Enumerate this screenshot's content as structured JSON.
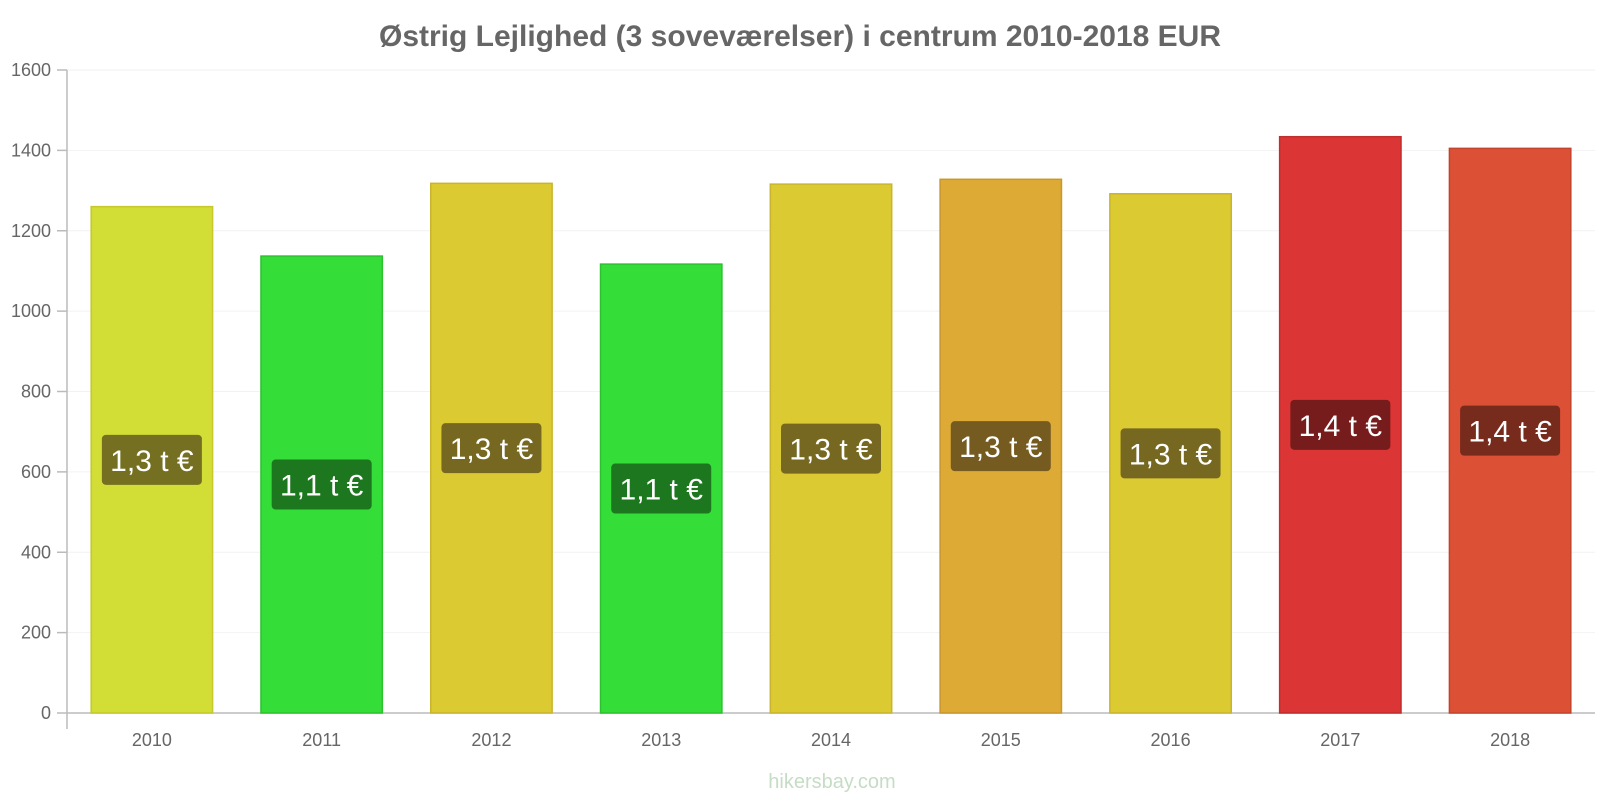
{
  "chart_data": {
    "type": "bar",
    "title": "Østrig Lejlighed (3 soveværelser) i centrum 2010-2018 EUR",
    "xlabel": "",
    "ylabel": "",
    "ylim": [
      0,
      1600
    ],
    "y_ticks": [
      "0",
      "200",
      "400",
      "600",
      "800",
      "1000",
      "1200",
      "1400",
      "1600"
    ],
    "grid": true,
    "categories": [
      "2010",
      "2011",
      "2012",
      "2013",
      "2014",
      "2015",
      "2016",
      "2017",
      "2018"
    ],
    "values": [
      1260,
      1137,
      1318,
      1117,
      1316,
      1328,
      1292,
      1434,
      1405
    ],
    "data_labels": [
      "1,3 t €",
      "1,1 t €",
      "1,3 t €",
      "1,1 t €",
      "1,3 t €",
      "1,3 t €",
      "1,3 t €",
      "1,4 t €",
      "1,4 t €"
    ],
    "bar_colors": [
      "#d2dd35",
      "#34dd38",
      "#dcca33",
      "#34dd38",
      "#dcca33",
      "#dcaa35",
      "#dcca33",
      "#dc3535",
      "#dc5035"
    ],
    "bar_border_colors": [
      "#c4c82c",
      "#2cc22f",
      "#c9b52c",
      "#2cc22f",
      "#c9b52c",
      "#c9972d",
      "#c9b52c",
      "#c22d2d",
      "#c2442d"
    ],
    "label_bg_colors": [
      "#6d6620",
      "#1a6e1c",
      "#6d6020",
      "#1a6e1c",
      "#6d6020",
      "#6d5520",
      "#6d6020",
      "#6e1a1a",
      "#6e281a"
    ]
  },
  "watermark": "hikersbay.com"
}
